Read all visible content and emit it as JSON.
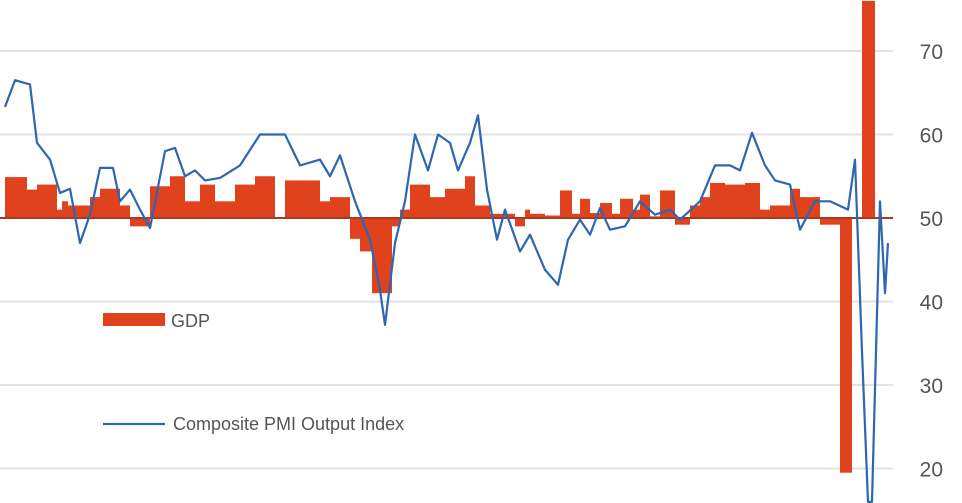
{
  "chart_data": {
    "type": "bar+line",
    "title": "",
    "xlabel": "",
    "ylabel": "",
    "x_units": "months (relative index)",
    "ylim": [
      16,
      76
    ],
    "yticks": [
      20,
      30,
      40,
      50,
      60,
      70
    ],
    "ytick_labels": [
      "20",
      "30",
      "40",
      "50",
      "60",
      "70"
    ],
    "y_axis_side": "right",
    "baseline": 50,
    "grid": true,
    "legend_placement": "bottom-left",
    "colors": {
      "gdp": "#e0421e",
      "pmi": "#2e66b0",
      "grid": "#e2e2e2",
      "baseline": "#a83a22"
    },
    "series": [
      {
        "name": "GDP",
        "kind": "bar",
        "bars": [
          {
            "start": 1,
            "end": 5.4,
            "value": 54.9
          },
          {
            "start": 5.4,
            "end": 7.4,
            "value": 53.4
          },
          {
            "start": 7.4,
            "end": 11.4,
            "value": 54
          },
          {
            "start": 11.4,
            "end": 12.4,
            "value": 51
          },
          {
            "start": 12.4,
            "end": 13.6,
            "value": 52
          },
          {
            "start": 13.6,
            "end": 18,
            "value": 51.5
          },
          {
            "start": 18,
            "end": 20,
            "value": 52.5
          },
          {
            "start": 20,
            "end": 24,
            "value": 53.5
          },
          {
            "start": 24,
            "end": 26,
            "value": 51.5
          },
          {
            "start": 26,
            "end": 30,
            "value": 49
          },
          {
            "start": 30,
            "end": 34,
            "value": 53.8
          },
          {
            "start": 34,
            "end": 37,
            "value": 55
          },
          {
            "start": 37,
            "end": 40,
            "value": 52
          },
          {
            "start": 40,
            "end": 43,
            "value": 54
          },
          {
            "start": 43,
            "end": 47,
            "value": 52
          },
          {
            "start": 47,
            "end": 51,
            "value": 54
          },
          {
            "start": 51,
            "end": 55,
            "value": 55
          },
          {
            "start": 55,
            "end": 57,
            "value": 50
          },
          {
            "start": 57,
            "end": 61,
            "value": 54.5
          },
          {
            "start": 61,
            "end": 64,
            "value": 54.5
          },
          {
            "start": 64,
            "end": 66,
            "value": 52
          },
          {
            "start": 66,
            "end": 70,
            "value": 52.5
          },
          {
            "start": 70,
            "end": 72,
            "value": 47.5
          },
          {
            "start": 72,
            "end": 74.4,
            "value": 46
          },
          {
            "start": 74.4,
            "end": 78.4,
            "value": 41
          },
          {
            "start": 78.4,
            "end": 80,
            "value": 49
          },
          {
            "start": 80,
            "end": 82,
            "value": 51
          },
          {
            "start": 82,
            "end": 86,
            "value": 54
          },
          {
            "start": 86,
            "end": 89,
            "value": 52.5
          },
          {
            "start": 89,
            "end": 93,
            "value": 53.5
          },
          {
            "start": 93,
            "end": 95,
            "value": 55
          },
          {
            "start": 95,
            "end": 98,
            "value": 51.5
          },
          {
            "start": 98,
            "end": 103,
            "value": 50.5
          },
          {
            "start": 103,
            "end": 105,
            "value": 49
          },
          {
            "start": 105,
            "end": 106,
            "value": 51
          },
          {
            "start": 106,
            "end": 109,
            "value": 50.5
          },
          {
            "start": 109,
            "end": 112,
            "value": 50.3
          },
          {
            "start": 112,
            "end": 114.4,
            "value": 53.3
          },
          {
            "start": 114.4,
            "end": 116,
            "value": 50.5
          },
          {
            "start": 116,
            "end": 118,
            "value": 52.3
          },
          {
            "start": 118,
            "end": 120,
            "value": 50.6
          },
          {
            "start": 120,
            "end": 122.4,
            "value": 51.8
          },
          {
            "start": 122.4,
            "end": 124,
            "value": 50.5
          },
          {
            "start": 124,
            "end": 126.6,
            "value": 52.3
          },
          {
            "start": 126.6,
            "end": 128,
            "value": 51
          },
          {
            "start": 128,
            "end": 130,
            "value": 52.8
          },
          {
            "start": 130,
            "end": 132,
            "value": 50.2
          },
          {
            "start": 132,
            "end": 135,
            "value": 53.3
          },
          {
            "start": 135,
            "end": 138,
            "value": 49.2
          },
          {
            "start": 138,
            "end": 140,
            "value": 51.5
          },
          {
            "start": 140,
            "end": 142,
            "value": 52.5
          },
          {
            "start": 142,
            "end": 145,
            "value": 54.2
          },
          {
            "start": 145,
            "end": 149,
            "value": 54
          },
          {
            "start": 149,
            "end": 152,
            "value": 54.2
          },
          {
            "start": 152,
            "end": 154,
            "value": 51
          },
          {
            "start": 154,
            "end": 158,
            "value": 51.5
          },
          {
            "start": 158,
            "end": 160,
            "value": 53.5
          },
          {
            "start": 160,
            "end": 164,
            "value": 52.5
          },
          {
            "start": 164,
            "end": 168,
            "value": 49.2
          },
          {
            "start": 168,
            "end": 170.4,
            "value": 19.5
          },
          {
            "start": 172.4,
            "end": 175,
            "value": 80
          }
        ]
      },
      {
        "name": "Composite PMI Output Index",
        "kind": "line",
        "points": [
          [
            1,
            63.3
          ],
          [
            3,
            66.5
          ],
          [
            6,
            66
          ],
          [
            7.4,
            59
          ],
          [
            10,
            57
          ],
          [
            12,
            53
          ],
          [
            14,
            53.5
          ],
          [
            16,
            47
          ],
          [
            18,
            50.4
          ],
          [
            20,
            56
          ],
          [
            22.6,
            56
          ],
          [
            24,
            52
          ],
          [
            26,
            53.4
          ],
          [
            28,
            51
          ],
          [
            30,
            48.8
          ],
          [
            33,
            58
          ],
          [
            35,
            58.4
          ],
          [
            37,
            55
          ],
          [
            39,
            55.7
          ],
          [
            41,
            54.5
          ],
          [
            44,
            54.8
          ],
          [
            48,
            56.3
          ],
          [
            52,
            60
          ],
          [
            57,
            60
          ],
          [
            60,
            56.3
          ],
          [
            64,
            57
          ],
          [
            66,
            55
          ],
          [
            68,
            57.5
          ],
          [
            71,
            52
          ],
          [
            74,
            47.4
          ],
          [
            76,
            41.4
          ],
          [
            77,
            37.2
          ],
          [
            79,
            47
          ],
          [
            81,
            52
          ],
          [
            83,
            60
          ],
          [
            85.6,
            55.7
          ],
          [
            87.6,
            60
          ],
          [
            90,
            59
          ],
          [
            91.6,
            55.7
          ],
          [
            94,
            59
          ],
          [
            95.6,
            62.3
          ],
          [
            97.4,
            53.4
          ],
          [
            99.4,
            47.4
          ],
          [
            101,
            51
          ],
          [
            104,
            46
          ],
          [
            106,
            48
          ],
          [
            109,
            43.8
          ],
          [
            111.6,
            42
          ],
          [
            113.6,
            47.4
          ],
          [
            116,
            49.8
          ],
          [
            118,
            48
          ],
          [
            120,
            51.2
          ],
          [
            122,
            48.6
          ],
          [
            125,
            49
          ],
          [
            128,
            52
          ],
          [
            131,
            50.4
          ],
          [
            134,
            51
          ],
          [
            136,
            49.8
          ],
          [
            140,
            52
          ],
          [
            143,
            56.3
          ],
          [
            146,
            56.3
          ],
          [
            148,
            55.7
          ],
          [
            150.4,
            60.2
          ],
          [
            153,
            56.3
          ],
          [
            155,
            54.5
          ],
          [
            158,
            54
          ],
          [
            160,
            48.6
          ],
          [
            163,
            52
          ],
          [
            166,
            52
          ],
          [
            169.6,
            51
          ],
          [
            171,
            57
          ],
          [
            172.4,
            34
          ],
          [
            173.6,
            10
          ],
          [
            174.4,
            10
          ],
          [
            176,
            52
          ],
          [
            177,
            41
          ],
          [
            177.6,
            47
          ]
        ]
      }
    ],
    "legend": [
      "GDP",
      "Composite PMI Output Index"
    ]
  }
}
